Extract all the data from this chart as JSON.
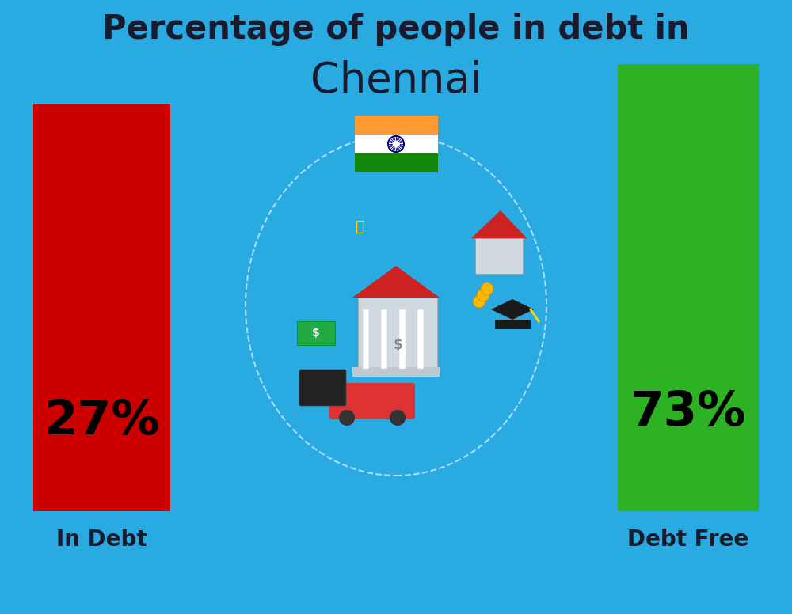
{
  "title_line1": "Percentage of people in debt in",
  "title_line2": "Chennai",
  "background_color": "#29ABE2",
  "bar1_label": "27%",
  "bar1_color": "#CC0000",
  "bar1_text": "In Debt",
  "bar2_label": "73%",
  "bar2_color": "#2DB224",
  "bar2_text": "Debt Free",
  "title_color": "#1a1a2e",
  "label_color": "#1a1a2e",
  "title_fontsize": 30,
  "city_fontsize": 38,
  "bar_label_fontsize": 44,
  "bar_text_fontsize": 20,
  "flag_saffron": "#FF9933",
  "flag_white": "#FFFFFF",
  "flag_green": "#138808",
  "flag_navy": "#000080"
}
